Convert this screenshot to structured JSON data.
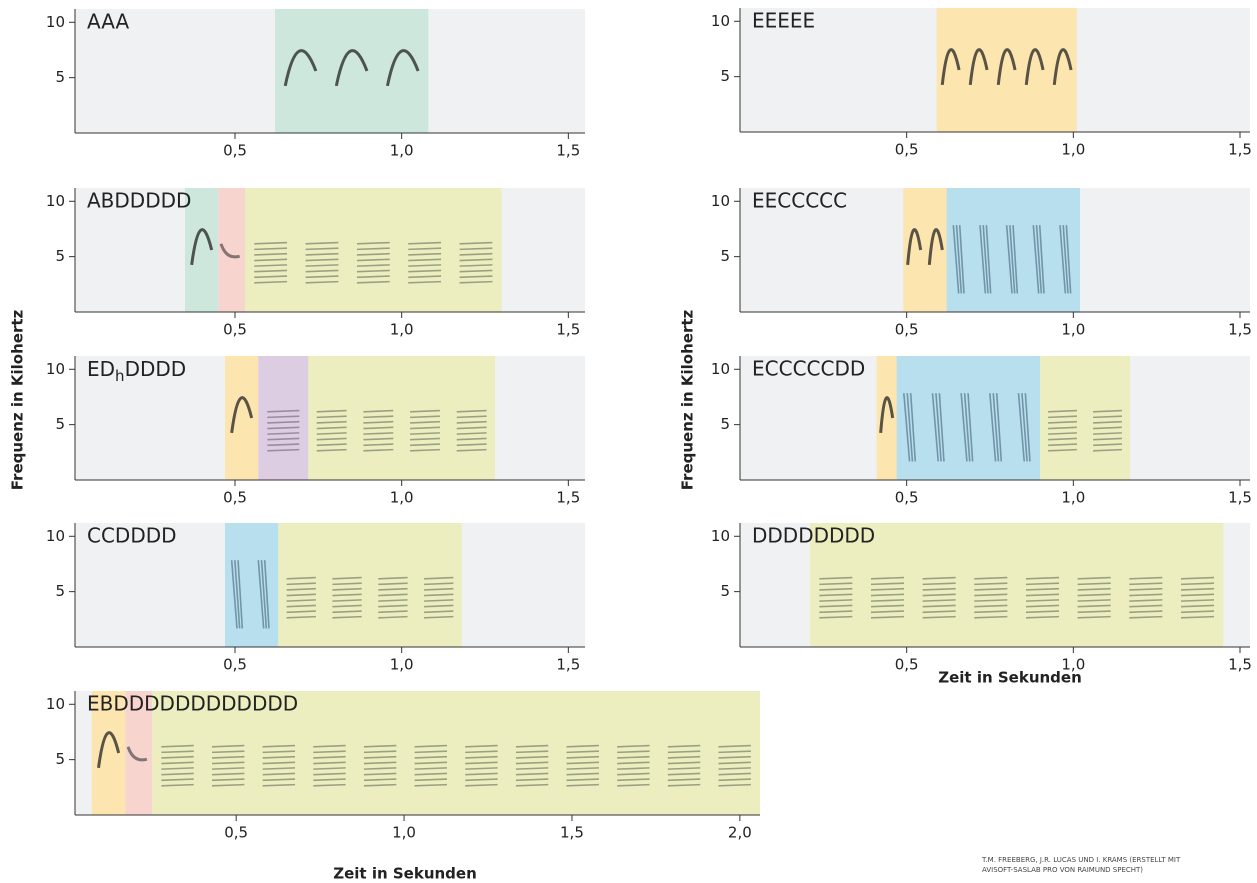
{
  "chart_data": [
    {
      "type": "spectrogram",
      "title": "AAA",
      "xlim": [
        0.02,
        1.55
      ],
      "ylim": [
        0,
        11.2
      ],
      "xticks": [
        {
          "value": 0.5,
          "label": "0,5"
        },
        {
          "value": 1.0,
          "label": "1,0"
        },
        {
          "value": 1.5,
          "label": "1,5"
        }
      ],
      "yticks": [
        5,
        10
      ],
      "spans": [
        {
          "start": 0.62,
          "end": 1.08,
          "color": "#cde7dc"
        }
      ]
    },
    {
      "type": "spectrogram",
      "title": "ABDDDDD",
      "xlim": [
        0.02,
        1.55
      ],
      "ylim": [
        0,
        11.2
      ],
      "xticks": [
        {
          "value": 0.5,
          "label": "0,5"
        },
        {
          "value": 1.0,
          "label": "1,0"
        },
        {
          "value": 1.5,
          "label": "1,5"
        }
      ],
      "yticks": [
        5,
        10
      ],
      "spans": [
        {
          "start": 0.35,
          "end": 0.45,
          "color": "#cde7dc"
        },
        {
          "start": 0.45,
          "end": 0.53,
          "color": "#f8d4cf"
        },
        {
          "start": 0.53,
          "end": 1.3,
          "color": "#eceec0"
        }
      ]
    },
    {
      "type": "spectrogram",
      "title_parts": [
        {
          "text": "ED"
        },
        {
          "text": "h",
          "sub": true
        },
        {
          "text": "DDDD"
        }
      ],
      "xlim": [
        0.02,
        1.55
      ],
      "ylim": [
        0,
        11.2
      ],
      "xticks": [
        {
          "value": 0.5,
          "label": "0,5"
        },
        {
          "value": 1.0,
          "label": "1,0"
        },
        {
          "value": 1.5,
          "label": "1,5"
        }
      ],
      "yticks": [
        5,
        10
      ],
      "spans": [
        {
          "start": 0.47,
          "end": 0.57,
          "color": "#fde5b0"
        },
        {
          "start": 0.57,
          "end": 0.72,
          "color": "#ddcde3"
        },
        {
          "start": 0.72,
          "end": 1.28,
          "color": "#eceec0"
        }
      ]
    },
    {
      "type": "spectrogram",
      "title": "CCDDDD",
      "xlim": [
        0.02,
        1.55
      ],
      "ylim": [
        0,
        11.2
      ],
      "xticks": [
        {
          "value": 0.5,
          "label": "0,5"
        },
        {
          "value": 1.0,
          "label": "1,0"
        },
        {
          "value": 1.5,
          "label": "1,5"
        }
      ],
      "yticks": [
        5,
        10
      ],
      "spans": [
        {
          "start": 0.47,
          "end": 0.63,
          "color": "#b7dfee"
        },
        {
          "start": 0.63,
          "end": 1.18,
          "color": "#eceec0"
        }
      ]
    },
    {
      "type": "spectrogram",
      "title": "EBDDDDDDDDDDDD",
      "xlim": [
        0.02,
        2.06
      ],
      "ylim": [
        0,
        11.2
      ],
      "xticks": [
        {
          "value": 0.5,
          "label": "0,5"
        },
        {
          "value": 1.0,
          "label": "1,0"
        },
        {
          "value": 1.5,
          "label": "1,5"
        },
        {
          "value": 2.0,
          "label": "2,0"
        }
      ],
      "yticks": [
        5,
        10
      ],
      "spans": [
        {
          "start": 0.07,
          "end": 0.17,
          "color": "#fde5b0"
        },
        {
          "start": 0.17,
          "end": 0.25,
          "color": "#f8d4cf"
        },
        {
          "start": 0.25,
          "end": 2.06,
          "color": "#eceec0"
        }
      ]
    },
    {
      "type": "spectrogram",
      "title": "EEEEE",
      "xlim": [
        0,
        1.53
      ],
      "ylim": [
        0,
        11.2
      ],
      "xticks": [
        {
          "value": 0.5,
          "label": "0,5"
        },
        {
          "value": 1.0,
          "label": "1,0"
        },
        {
          "value": 1.5,
          "label": "1,5"
        }
      ],
      "yticks": [
        5,
        10
      ],
      "spans": [
        {
          "start": 0.59,
          "end": 1.01,
          "color": "#fde5b0"
        }
      ]
    },
    {
      "type": "spectrogram",
      "title": "EECCCCC",
      "xlim": [
        0,
        1.53
      ],
      "ylim": [
        0,
        11.2
      ],
      "xticks": [
        {
          "value": 0.5,
          "label": "0,5"
        },
        {
          "value": 1.0,
          "label": "1,0"
        },
        {
          "value": 1.5,
          "label": "1,5"
        }
      ],
      "yticks": [
        5,
        10
      ],
      "spans": [
        {
          "start": 0.49,
          "end": 0.62,
          "color": "#fde5b0"
        },
        {
          "start": 0.62,
          "end": 1.02,
          "color": "#b7dfee"
        }
      ]
    },
    {
      "type": "spectrogram",
      "title": "ECCCCCDD",
      "xlim": [
        0,
        1.53
      ],
      "ylim": [
        0,
        11.2
      ],
      "xticks": [
        {
          "value": 0.5,
          "label": "0,5"
        },
        {
          "value": 1.0,
          "label": "1,0"
        },
        {
          "value": 1.5,
          "label": "1,5"
        }
      ],
      "yticks": [
        5,
        10
      ],
      "spans": [
        {
          "start": 0.41,
          "end": 0.47,
          "color": "#fde5b0"
        },
        {
          "start": 0.47,
          "end": 0.9,
          "color": "#b7dfee"
        },
        {
          "start": 0.9,
          "end": 1.17,
          "color": "#eceec0"
        }
      ]
    },
    {
      "type": "spectrogram",
      "title": "DDDDDDDD",
      "xlim": [
        0,
        1.53
      ],
      "ylim": [
        0,
        11.2
      ],
      "xticks": [
        {
          "value": 0.5,
          "label": "0,5"
        },
        {
          "value": 1.0,
          "label": "1,0"
        },
        {
          "value": 1.5,
          "label": "1,5"
        }
      ],
      "yticks": [
        5,
        10
      ],
      "spans": [
        {
          "start": 0.21,
          "end": 1.45,
          "color": "#eceec0"
        }
      ]
    }
  ],
  "labels": {
    "frequency": "Frequenz in Kilohertz",
    "time": "Zeit in Sekunden"
  },
  "credit": [
    "T.M. FREEBERG, J.R. LUCAS UND I. KRAMS (ERSTELLT MIT",
    "AVISOFT-SASLAB PRO VON RAIMUND SPECHT)"
  ]
}
